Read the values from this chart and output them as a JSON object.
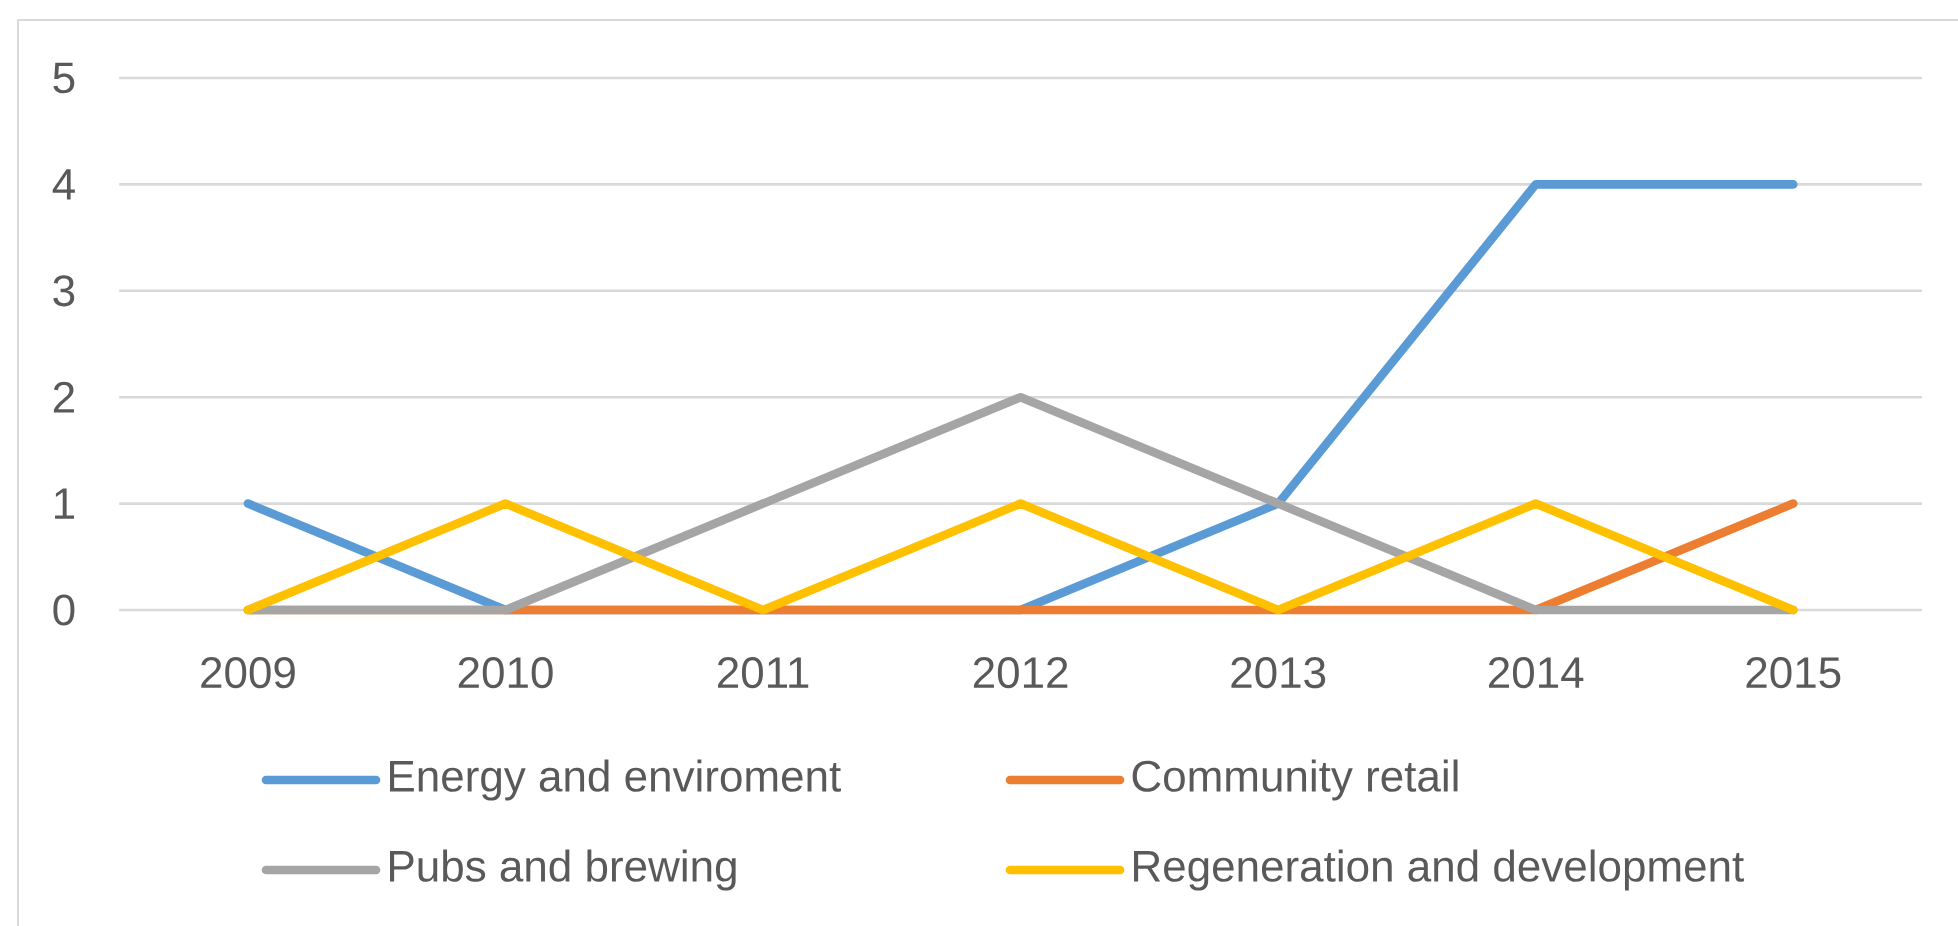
{
  "chart_data": {
    "type": "line",
    "categories": [
      "2009",
      "2010",
      "2011",
      "2012",
      "2013",
      "2014",
      "2015"
    ],
    "series": [
      {
        "name": "Energy and enviroment",
        "color": "#5b9bd5",
        "values": [
          1,
          0,
          0,
          0,
          1,
          4,
          4
        ]
      },
      {
        "name": "Community retail",
        "color": "#ed7d31",
        "values": [
          0,
          0,
          0,
          0,
          0,
          0,
          1
        ]
      },
      {
        "name": "Pubs and brewing",
        "color": "#a5a5a5",
        "values": [
          0,
          0,
          1,
          2,
          1,
          0,
          0
        ]
      },
      {
        "name": "Regeneration and development",
        "color": "#ffc000",
        "values": [
          0,
          1,
          0,
          1,
          0,
          1,
          0
        ]
      }
    ],
    "ylim": [
      0,
      5
    ],
    "yticks": [
      0,
      1,
      2,
      3,
      4,
      5
    ],
    "grid": "y",
    "legend": "bottom",
    "line_style": "solid"
  }
}
